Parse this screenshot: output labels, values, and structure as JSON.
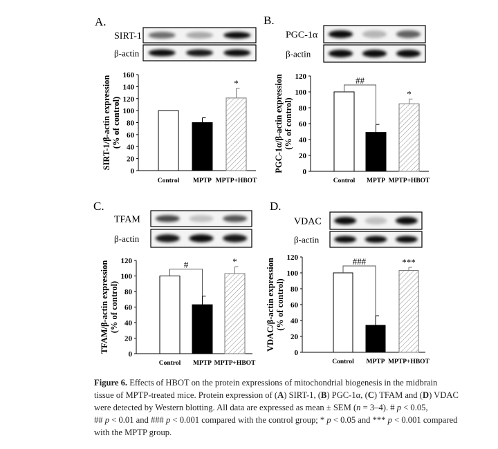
{
  "chart_data": [
    {
      "type": "bar",
      "panel_label": "A.",
      "blot_labels": [
        "SIRT-1",
        "β-actin"
      ],
      "categories": [
        "Control",
        "MPTP",
        "MPTP+HBOT"
      ],
      "values": [
        100,
        80,
        121
      ],
      "errors": [
        0,
        8,
        16
      ],
      "ylabel": [
        "SIRT-1/β-actin expression",
        "(% of control)"
      ],
      "ylim": [
        0,
        160
      ],
      "yticks": [
        "0",
        "20",
        "40",
        "60",
        "80",
        "100",
        "120",
        "140",
        "160"
      ],
      "ytick_values": [
        0,
        20,
        40,
        60,
        80,
        100,
        120,
        140,
        160
      ],
      "bracket_label": "",
      "star_label": "*",
      "band_intensity": [
        [
          0.55,
          0.3,
          0.95
        ],
        [
          0.95,
          0.9,
          0.95
        ]
      ]
    },
    {
      "type": "bar",
      "panel_label": "B.",
      "blot_labels": [
        "PGC-1α",
        "β-actin"
      ],
      "categories": [
        "Control",
        "MPTP",
        "MPTP+HBOT"
      ],
      "values": [
        100,
        49,
        85
      ],
      "errors": [
        0,
        10,
        6
      ],
      "ylabel": [
        "PGC-1α/β-actin expression",
        "(% of control)"
      ],
      "ylim": [
        0,
        120
      ],
      "yticks": [
        "0",
        "20",
        "40",
        "60",
        "80",
        "100",
        "120"
      ],
      "ytick_values": [
        0,
        20,
        40,
        60,
        80,
        100,
        120
      ],
      "bracket_label": "##",
      "star_label": "*",
      "band_intensity": [
        [
          0.95,
          0.25,
          0.6
        ],
        [
          0.95,
          0.95,
          0.95
        ]
      ]
    },
    {
      "type": "bar",
      "panel_label": "C.",
      "blot_labels": [
        "TFAM",
        "β-actin"
      ],
      "categories": [
        "Control",
        "MPTP",
        "MPTP+HBOT"
      ],
      "values": [
        100,
        63,
        103
      ],
      "errors": [
        0,
        11,
        9
      ],
      "ylabel": [
        "TFAM/β-actin expression",
        "(% of control)"
      ],
      "ylim": [
        0,
        120
      ],
      "yticks": [
        "0",
        "20",
        "40",
        "60",
        "80",
        "100",
        "120"
      ],
      "ytick_values": [
        0,
        20,
        40,
        60,
        80,
        100,
        120
      ],
      "bracket_label": "#",
      "star_label": "*",
      "band_intensity": [
        [
          0.7,
          0.2,
          0.65
        ],
        [
          0.9,
          0.95,
          0.9
        ]
      ]
    },
    {
      "type": "bar",
      "panel_label": "D.",
      "blot_labels": [
        "VDAC",
        "β-actin"
      ],
      "categories": [
        "Control",
        "MPTP",
        "MPTP+HBOT"
      ],
      "values": [
        100,
        34,
        103
      ],
      "errors": [
        0,
        12,
        4
      ],
      "ylabel": [
        "VDAC/β-actin expression",
        "(% of control)"
      ],
      "ylim": [
        0,
        120
      ],
      "yticks": [
        "0",
        "20",
        "40",
        "60",
        "80",
        "100",
        "120"
      ],
      "ytick_values": [
        0,
        20,
        40,
        60,
        80,
        100,
        120
      ],
      "bracket_label": "###",
      "star_label": "***",
      "band_intensity": [
        [
          0.95,
          0.2,
          0.95
        ],
        [
          0.95,
          0.95,
          0.95
        ]
      ]
    }
  ],
  "colors": {
    "bar_control": "#ffffff",
    "bar_mptp": "#000000",
    "hatch": "#888888",
    "text": "#000000"
  },
  "caption": {
    "lines": [
      [
        {
          "t": "Figure 6.",
          "s": "b"
        },
        {
          "t": " Effects of HBOT on the protein expressions of mitochondrial biogenesis in the midbrain",
          "s": ""
        }
      ],
      [
        {
          "t": "tissue of MPTP-treated mice. Protein expression of (",
          "s": ""
        },
        {
          "t": "A",
          "s": "b"
        },
        {
          "t": ") SIRT-1, (",
          "s": ""
        },
        {
          "t": "B",
          "s": "b"
        },
        {
          "t": ") PGC-1α, (",
          "s": ""
        },
        {
          "t": "C",
          "s": "b"
        },
        {
          "t": ") TFAM and (",
          "s": ""
        },
        {
          "t": "D",
          "s": "b"
        },
        {
          "t": ") VDAC",
          "s": ""
        }
      ],
      [
        {
          "t": "were detected by Western blotting.  All data are expressed as mean ± SEM (",
          "s": ""
        },
        {
          "t": "n",
          "s": "i"
        },
        {
          "t": " = 3–4).  # ",
          "s": ""
        },
        {
          "t": "p",
          "s": "i"
        },
        {
          "t": " < 0.05,",
          "s": ""
        }
      ],
      [
        {
          "t": "## ",
          "s": ""
        },
        {
          "t": "p",
          "s": "i"
        },
        {
          "t": " < 0.01 and ### ",
          "s": ""
        },
        {
          "t": "p",
          "s": "i"
        },
        {
          "t": " < 0.001 compared with the control group; * ",
          "s": ""
        },
        {
          "t": "p",
          "s": "i"
        },
        {
          "t": " < 0.05 and *** ",
          "s": ""
        },
        {
          "t": "p",
          "s": "i"
        },
        {
          "t": " < 0.001 compared",
          "s": ""
        }
      ],
      [
        {
          "t": "with the MPTP group.",
          "s": ""
        }
      ]
    ]
  }
}
